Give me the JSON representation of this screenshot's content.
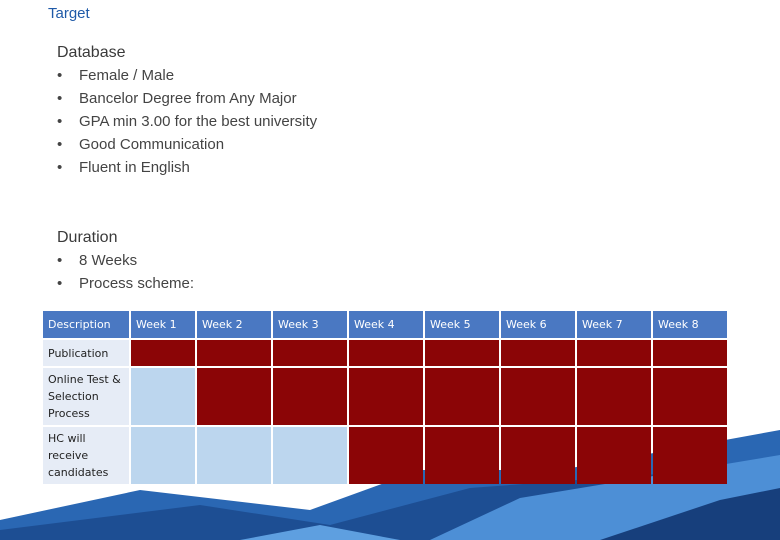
{
  "title": "Target",
  "database": {
    "heading": "Database",
    "items": [
      "Female / Male",
      "Bancelor Degree from Any Major",
      "GPA min 3.00 for the best university",
      "Good Communication",
      "Fluent in English"
    ]
  },
  "duration": {
    "heading": "Duration",
    "items": [
      "8 Weeks",
      "Process scheme:"
    ]
  },
  "bullet_glyph": "•",
  "schedule": {
    "headers": [
      "Description",
      "Week 1",
      "Week 2",
      "Week 3",
      "Week 4",
      "Week 5",
      "Week 6",
      "Week 7",
      "Week 8"
    ],
    "rows": [
      {
        "label": "Publication",
        "cells": [
          "red",
          "red",
          "red",
          "red",
          "red",
          "red",
          "red",
          "red"
        ]
      },
      {
        "label": "Online Test & Selection Process",
        "cells": [
          "light",
          "red",
          "red",
          "red",
          "red",
          "red",
          "red",
          "red"
        ]
      },
      {
        "label": "HC will receive candidates",
        "cells": [
          "light",
          "light",
          "light",
          "red",
          "red",
          "red",
          "red",
          "red"
        ]
      }
    ],
    "colors": {
      "header": "#4a78c2",
      "active": "#8b0506",
      "inactive": "#bcd6ee",
      "description": "#e6ecf6"
    }
  }
}
